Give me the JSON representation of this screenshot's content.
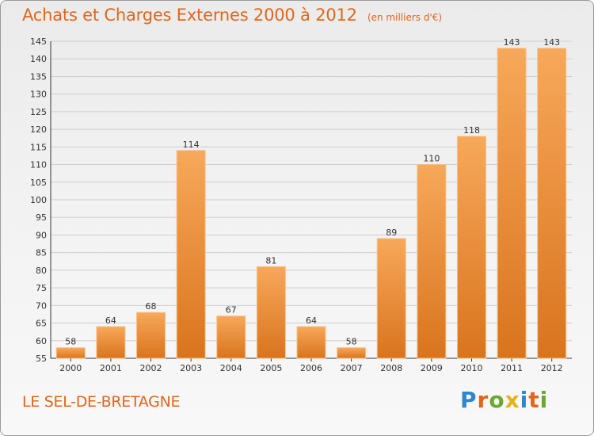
{
  "header": {
    "title": "Achats et Charges Externes 2000 à 2012",
    "unit": "(en milliers d'€)"
  },
  "footer": {
    "commune": "LE SEL-DE-BRETAGNE",
    "logo_text": "Proxiti"
  },
  "colors": {
    "accent": "#e0661b",
    "bar_light": "#f7a85a",
    "bar_dark": "#d9741e"
  },
  "chart_data": {
    "type": "bar",
    "title": "Achats et Charges Externes 2000 à 2012",
    "subtitle": "(en milliers d'€)",
    "categories": [
      "2000",
      "2001",
      "2002",
      "2003",
      "2004",
      "2005",
      "2006",
      "2007",
      "2008",
      "2009",
      "2010",
      "2011",
      "2012"
    ],
    "values": [
      58,
      64,
      68,
      114,
      67,
      81,
      64,
      58,
      89,
      110,
      118,
      143,
      143
    ],
    "ylim": [
      55,
      145
    ],
    "yticks": [
      55,
      60,
      65,
      70,
      75,
      80,
      85,
      90,
      95,
      100,
      105,
      110,
      115,
      120,
      125,
      130,
      135,
      140,
      145
    ],
    "grid": true,
    "legend": "none"
  }
}
